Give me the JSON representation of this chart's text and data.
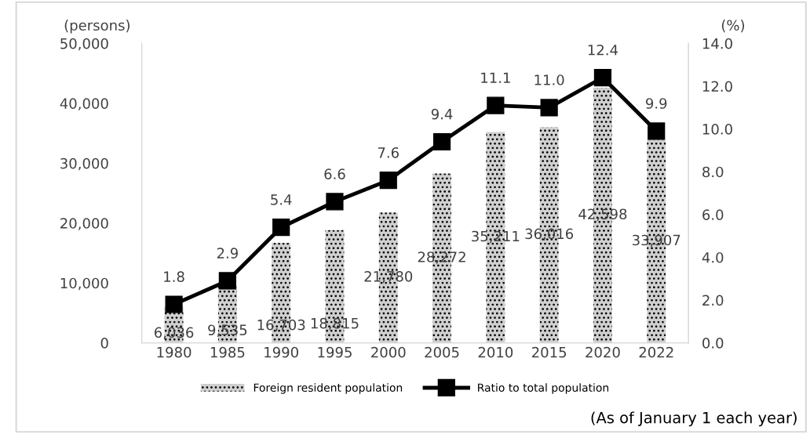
{
  "chart_data": {
    "type": "bar",
    "categories": [
      "1980",
      "1985",
      "1990",
      "1995",
      "2000",
      "2005",
      "2010",
      "2015",
      "2020",
      "2022"
    ],
    "series": [
      {
        "name": "Foreign resident population",
        "color": "#d0d0d0",
        "values": [
          6036,
          9535,
          16703,
          18815,
          21780,
          28272,
          35211,
          36016,
          42598,
          33907
        ],
        "value_labels": [
          "6,036",
          "9,535",
          "16,703",
          "18,815",
          "21,780",
          "28,272",
          "35,211",
          "36,016",
          "42,598",
          "33,907"
        ]
      },
      {
        "name": "Ratio to total population",
        "type": "line",
        "axis": "y2",
        "color": "#000000",
        "marker": "square",
        "values": [
          1.8,
          2.9,
          5.4,
          6.6,
          7.6,
          9.4,
          11.1,
          11.0,
          12.4,
          9.9
        ],
        "value_labels": [
          "1.8",
          "2.9",
          "5.4",
          "6.6",
          "7.6",
          "9.4",
          "11.1",
          "11.0",
          "12.4",
          "9.9"
        ]
      }
    ],
    "ylabel": "(persons)",
    "y2label": "(%)",
    "ylim": [
      0,
      50000
    ],
    "yticks": [
      {
        "value": 0,
        "label": "0"
      },
      {
        "value": 10000,
        "label": "10,000"
      },
      {
        "value": 20000,
        "label": "20,000"
      },
      {
        "value": 30000,
        "label": "30,000"
      },
      {
        "value": 40000,
        "label": "40,000"
      },
      {
        "value": 50000,
        "label": "50,000"
      }
    ],
    "y2lim": [
      0,
      14
    ],
    "y2ticks": [
      {
        "value": 0,
        "label": "0.0"
      },
      {
        "value": 2,
        "label": "2.0"
      },
      {
        "value": 4,
        "label": "4.0"
      },
      {
        "value": 6,
        "label": "6.0"
      },
      {
        "value": 8,
        "label": "8.0"
      },
      {
        "value": 10,
        "label": "10.0"
      },
      {
        "value": 12,
        "label": "12.0"
      },
      {
        "value": 14,
        "label": "14.0"
      }
    ],
    "grid": false,
    "legend": "bottom",
    "annotations": [
      "(As of January 1 each year)"
    ]
  }
}
